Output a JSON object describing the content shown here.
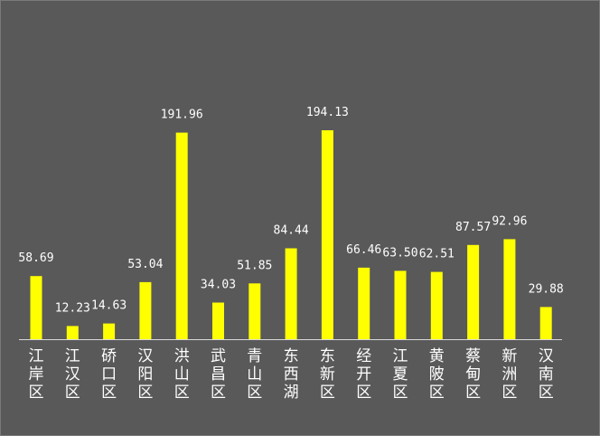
{
  "chart_data": {
    "type": "bar",
    "title": "",
    "xlabel": "",
    "ylabel": "",
    "categories": [
      "江岸区",
      "江汉区",
      "硚口区",
      "汉阳区",
      "洪山区",
      "武昌区",
      "青山区",
      "东西湖",
      "东新区",
      "经开区",
      "江夏区",
      "黄陂区",
      "蔡甸区",
      "新洲区",
      "汉南区"
    ],
    "values": [
      58.69,
      12.23,
      14.63,
      53.04,
      191.96,
      34.03,
      51.85,
      84.44,
      194.13,
      66.46,
      63.5,
      62.51,
      87.57,
      92.96,
      29.88
    ],
    "value_labels": [
      "58.69",
      "12.23",
      "14.63",
      "53.04",
      "191.96",
      "34.03",
      "51.85",
      "84.44",
      "194.13",
      "66.46",
      "63.50",
      "62.51",
      "87.57",
      "92.96",
      "29.88"
    ],
    "ylim": [
      0,
      200
    ],
    "grid": false,
    "legend": "none",
    "bar_color": "#ffff00",
    "background_color": "#595959",
    "text_color": "#ffffff"
  }
}
